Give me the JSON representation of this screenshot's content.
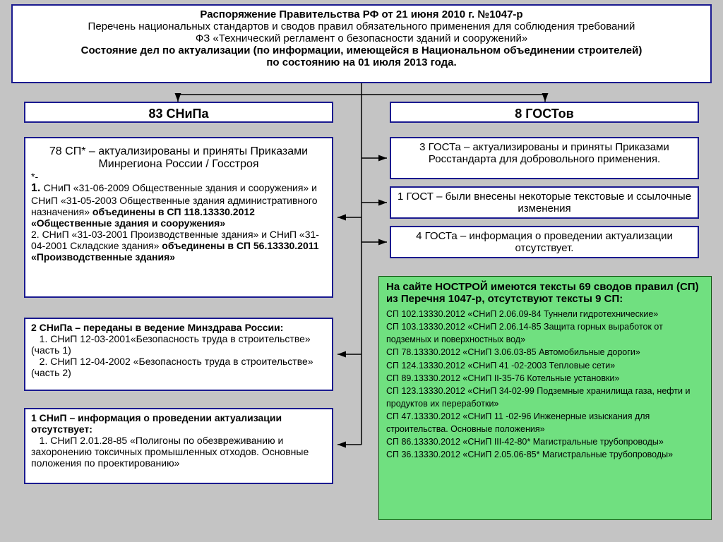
{
  "colors": {
    "border": "#1a1a8f",
    "bg": "#c4c4c4",
    "box_bg": "#ffffff",
    "green_bg": "#70e080",
    "green_border": "#0a4f0a",
    "line": "#000000"
  },
  "header": {
    "title": "Распоряжение Правительства РФ от 21 июня 2010 г. №1047-р",
    "line2": "Перечень национальных стандартов и сводов правил обязательного применения для соблюдения требований",
    "line3": "ФЗ «Технический регламент о безопасности зданий и сооружений»",
    "line4": "Состояние дел по актуализации (по информации, имеющейся в Национальном объединении строителей)",
    "line5": "по состоянию на 01 июля 2013 года."
  },
  "branches": {
    "snip": "83 СНиПа",
    "gost": "8 ГОСТов"
  },
  "sp78": {
    "head": "78 СП* – актуализированы и приняты Приказами Минрегиона России / Госстроя",
    "star": "*-",
    "num1": "1. ",
    "item1a": "СНиП «31-06-2009 Общественные здания и сооружения» и СНиП «31-05-2003 Общественные здания административного назначения» ",
    "item1b": "объединены в СП 118.13330.2012 «Общественные здания и сооружения»",
    "item2a": "2. СНиП «31-03-2001 Производственные здания» и СНиП «31-04-2001 Складские здания» ",
    "item2b": "объединены в СП 56.13330.2011 «Производственные здания»"
  },
  "minzdrav": {
    "head": "2 СНиПа – переданы в ведение Минздрава России:",
    "l1": "   1. СНиП 12-03-2001«Безопасность труда в строительстве» (часть 1)",
    "l2": "   2. СНиП 12-04-2002 «Безопасность труда в строительстве» (часть 2)"
  },
  "snip1": {
    "head": "1 СНиП – информация о проведении актуализации отсутствует:",
    "l1": "   1. СНиП 2.01.28-85 «Полигоны по обезвреживанию и захоронению токсичных промышленных отходов. Основные положения по проектированию»"
  },
  "gost3": "3 ГОСТа – актуализированы и приняты Приказами Росстандарта для добровольного применения.",
  "gost1": "1 ГОСТ – были внесены некоторые текстовые и ссылочные изменения",
  "gost4": "4 ГОСТа – информация о проведении актуализации отсутствует.",
  "green": {
    "head": "На сайте НОСТРОЙ имеются тексты 69 сводов правил (СП) из Перечня 1047-р, отсутствуют  тексты 9 СП:",
    "items": [
      "СП 102.13330.2012 «СНиП 2.06.09-84 Туннели гидротехнические»",
      "СП 103.13330.2012 «СНиП 2.06.14-85 Защита горных выработок от подземных и поверхностных вод»",
      "СП 78.13330.2012 «СНиП 3.06.03-85 Автомобильные дороги»",
      "СП 124.13330.2012 «СНиП 41 -02-2003 Тепловые сети»",
      "СП 89.13330.2012 «СНиП II-35-76 Котельные установки»",
      "СП 123.13330.2012 «СНиП 34-02-99 Подземные хранилища газа, нефти и продуктов их переработки»",
      "СП 47.13330.2012 «СНиП 11 -02-96 Инженерные изыскания для строительства. Основные положения»",
      "СП 86.13330.2012 «СНиП III-42-80* Магистральные трубопроводы»",
      "СП 36.13330.2012 «СНиП 2.05.06-85* Магистральные трубопроводы»"
    ]
  }
}
